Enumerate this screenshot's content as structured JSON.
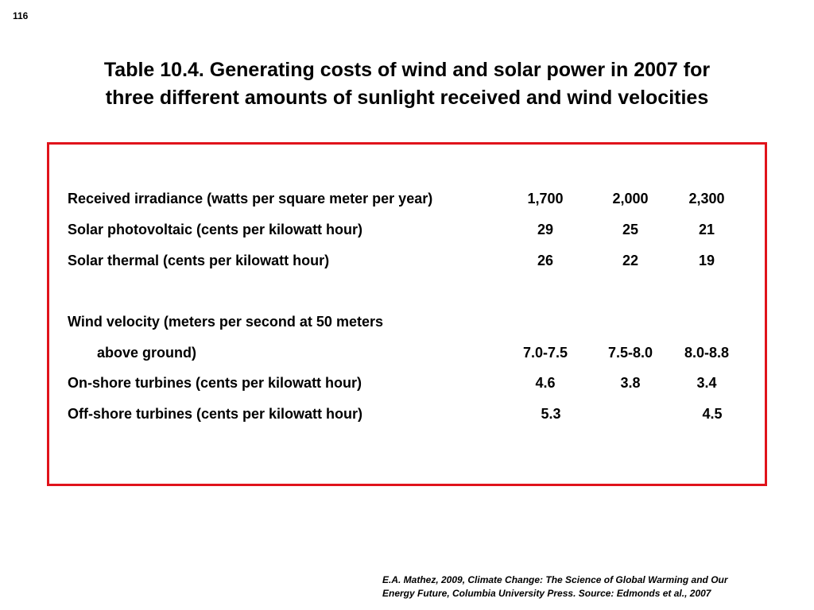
{
  "page_number": "116",
  "title": {
    "line1": "Table 10.4.  Generating costs of wind and solar power in 2007 for",
    "line2": "three different amounts of sunlight received and wind velocities"
  },
  "table": {
    "rows": [
      {
        "label": "Received irradiance (watts per square meter per year)",
        "values": [
          "1,700",
          "2,000",
          "2,300"
        ]
      },
      {
        "label": "Solar photovoltaic (cents per kilowatt hour)",
        "values": [
          "29",
          "25",
          "21"
        ]
      },
      {
        "label": "Solar thermal (cents per kilowatt hour)",
        "values": [
          "26",
          "22",
          "19"
        ]
      },
      {
        "label": "Wind velocity (meters per second at 50 meters",
        "values": [
          "",
          "",
          ""
        ]
      },
      {
        "label": "above ground)",
        "values": [
          "7.0-7.5",
          "7.5-8.0",
          "8.0-8.8"
        ]
      },
      {
        "label": "On-shore turbines (cents per kilowatt hour)",
        "values": [
          "4.6",
          "3.8",
          "3.4"
        ]
      },
      {
        "label": "Off-shore turbines (cents per kilowatt hour)",
        "values": [
          "5.3",
          "",
          "4.5"
        ]
      }
    ]
  },
  "citation": {
    "line1": "E.A. Mathez, 2009, Climate Change: The Science of Global Warming and Our",
    "line2": "Energy Future, Columbia University Press.  Source: Edmonds et al., 2007"
  }
}
